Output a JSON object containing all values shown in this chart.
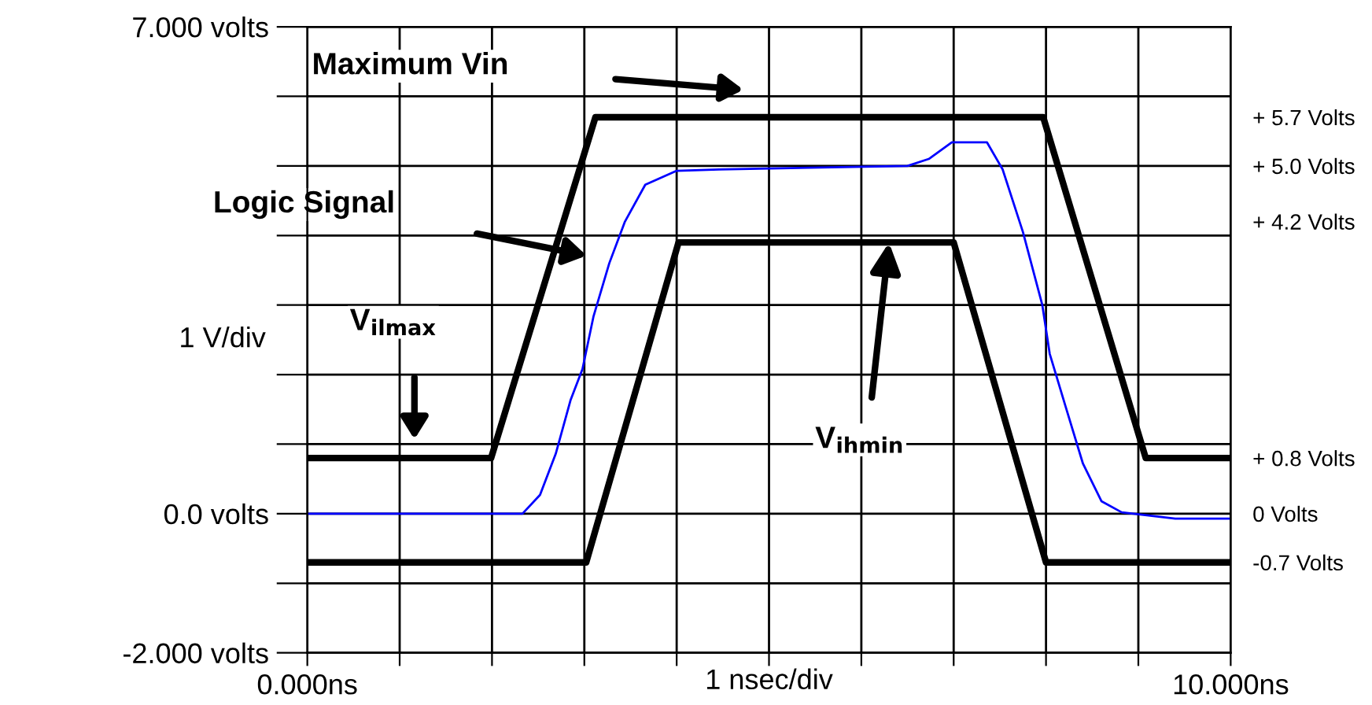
{
  "chart_data": {
    "type": "line",
    "xlabel": "1 nsec/div",
    "ylabel": "1 V/div",
    "xlim": [
      0,
      10
    ],
    "ylim": [
      -2,
      7
    ],
    "xticks": [
      {
        "value": 0,
        "label": "0.000ns"
      },
      {
        "value": 1,
        "label": null
      },
      {
        "value": 2,
        "label": null
      },
      {
        "value": 3,
        "label": null
      },
      {
        "value": 4,
        "label": null
      },
      {
        "value": 5,
        "label": null
      },
      {
        "value": 6,
        "label": null
      },
      {
        "value": 7,
        "label": null
      },
      {
        "value": 8,
        "label": null
      },
      {
        "value": 9,
        "label": null
      },
      {
        "value": 10,
        "label": "10.000ns"
      }
    ],
    "yticks": [
      {
        "value": -2,
        "label": "-2.000 volts"
      },
      {
        "value": -1,
        "label": null
      },
      {
        "value": 0,
        "label": "0.0 volts"
      },
      {
        "value": 1,
        "label": null
      },
      {
        "value": 2,
        "label": null
      },
      {
        "value": 3,
        "label": null
      },
      {
        "value": 4,
        "label": null
      },
      {
        "value": 5,
        "label": null
      },
      {
        "value": 6,
        "label": null
      },
      {
        "value": 7,
        "label": "7.000 volts"
      }
    ],
    "y2lim": [
      -2,
      7
    ],
    "y2ticks": [
      {
        "value": 5.7,
        "label": "+ 5.7 Volts"
      },
      {
        "value": 5.0,
        "label": "+ 5.0 Volts"
      },
      {
        "value": 4.2,
        "label": "+ 4.2 Volts"
      },
      {
        "value": 0.8,
        "label": "+ 0.8 Volts"
      },
      {
        "value": 0,
        "label": "0 Volts"
      },
      {
        "value": -0.7,
        "label": "-0.7 Volts"
      }
    ],
    "grid": true,
    "series": [
      {
        "color": "#000000",
        "x": [
          0,
          1.99,
          3.12,
          7.97,
          9.08,
          10
        ],
        "values": [
          0.8,
          0.8,
          5.7,
          5.7,
          0.8,
          0.8
        ]
      },
      {
        "color": "#000000",
        "x": [
          0,
          3.02,
          4.02,
          7.0,
          8.0,
          10
        ],
        "values": [
          -0.7,
          -0.7,
          3.9,
          3.9,
          -0.7,
          -0.7
        ]
      },
      {
        "color": "#0000ff",
        "x": [
          0,
          2.33,
          2.52,
          2.69,
          2.85,
          2.98,
          3.1,
          3.27,
          3.44,
          3.66,
          4.0,
          4.46,
          6.5,
          6.73,
          6.98,
          7.36,
          7.53,
          7.75,
          7.96,
          8.04,
          8.21,
          8.4,
          8.6,
          8.82,
          9.4,
          10
        ],
        "values": [
          0,
          0,
          0.27,
          0.86,
          1.63,
          2.08,
          2.84,
          3.6,
          4.2,
          4.73,
          4.93,
          4.95,
          5.0,
          5.1,
          5.34,
          5.34,
          4.95,
          4.05,
          3.0,
          2.3,
          1.55,
          0.72,
          0.18,
          0.02,
          -0.07,
          -0.07
        ]
      }
    ],
    "annotations": [
      "Maximum Vin",
      "Logic Signal",
      "V$_{ilmax}$",
      {
        "text": "V$_{ihmin}$",
        "x": 6.3,
        "y": 3.9
      }
    ]
  }
}
